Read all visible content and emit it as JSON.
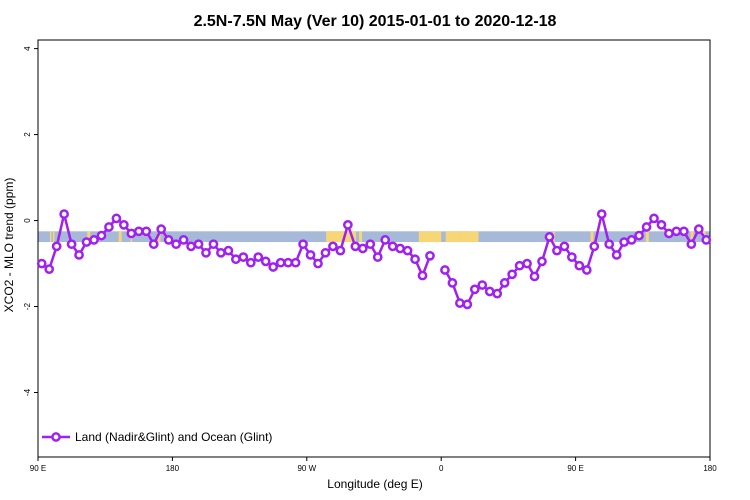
{
  "chart_data": {
    "type": "line",
    "title": "2.5N-7.5N May (Ver 10)   2015-01-01 to 2020-12-18",
    "xlabel": "Longitude (deg E)",
    "ylabel": "XCO2 - MLO trend (ppm)",
    "xlim": [
      90,
      450
    ],
    "ylim": [
      -5.5,
      4.2
    ],
    "x_ticks": [
      {
        "value": 90,
        "label": "90 E"
      },
      {
        "value": 180,
        "label": "180"
      },
      {
        "value": 270,
        "label": "90 W"
      },
      {
        "value": 360,
        "label": "0"
      },
      {
        "value": 450,
        "label": "90 E"
      },
      {
        "value": 540,
        "label": "180"
      }
    ],
    "y_ticks": [
      {
        "value": 4,
        "label": "4"
      },
      {
        "value": 2,
        "label": "2"
      },
      {
        "value": 0,
        "label": "0"
      },
      {
        "value": -2,
        "label": "-2"
      },
      {
        "value": -4,
        "label": "-4"
      }
    ],
    "xlim_display": [
      90,
      540
    ],
    "band": {
      "ymin": -0.5,
      "ymax": -0.25,
      "ocean_color": "#a6b9d9",
      "land_color": "#f7d675"
    },
    "land_segments": [
      [
        98,
        99
      ],
      [
        100,
        101
      ],
      [
        123,
        125
      ],
      [
        144,
        146
      ],
      [
        152,
        153
      ],
      [
        170,
        172
      ],
      [
        283,
        302
      ],
      [
        302,
        303
      ],
      [
        305,
        307
      ],
      [
        345,
        360
      ],
      [
        363,
        372
      ],
      [
        372,
        385
      ],
      [
        435,
        436
      ],
      [
        460,
        462
      ],
      [
        497,
        499
      ],
      [
        527,
        529
      ],
      [
        535,
        537
      ]
    ],
    "series": [
      {
        "name": "Land (Nadir&Glint) and Ocean (Glint)",
        "color": "#a020f0",
        "points": [
          [
            92.5,
            -1.0
          ],
          [
            97.5,
            -1.13
          ],
          [
            102.5,
            -0.6
          ],
          [
            107.5,
            0.15
          ],
          [
            112.5,
            -0.55
          ],
          [
            117.5,
            -0.8
          ],
          [
            122.5,
            -0.5
          ],
          [
            127.5,
            -0.45
          ],
          [
            132.5,
            -0.35
          ],
          [
            137.5,
            -0.15
          ],
          [
            142.5,
            0.05
          ],
          [
            147.5,
            -0.1
          ],
          [
            152.5,
            -0.3
          ],
          [
            157.5,
            -0.25
          ],
          [
            162.5,
            -0.25
          ],
          [
            167.5,
            -0.55
          ],
          [
            172.5,
            -0.2
          ],
          [
            177.5,
            -0.45
          ],
          [
            182.5,
            -0.55
          ],
          [
            187.5,
            -0.45
          ],
          [
            192.5,
            -0.6
          ],
          [
            197.5,
            -0.55
          ],
          [
            202.5,
            -0.75
          ],
          [
            207.5,
            -0.55
          ],
          [
            212.5,
            -0.75
          ],
          [
            217.5,
            -0.7
          ],
          [
            222.5,
            -0.9
          ],
          [
            227.5,
            -0.85
          ],
          [
            232.5,
            -0.98
          ],
          [
            237.5,
            -0.85
          ],
          [
            242.5,
            -0.95
          ],
          [
            247.5,
            -1.08
          ],
          [
            252.5,
            -0.98
          ],
          [
            257.5,
            -0.98
          ],
          [
            262.5,
            -0.98
          ],
          [
            267.5,
            -0.55
          ],
          [
            272.5,
            -0.8
          ],
          [
            277.5,
            -1.0
          ],
          [
            282.5,
            -0.75
          ],
          [
            287.5,
            -0.6
          ],
          [
            292.5,
            -0.7
          ],
          [
            297.5,
            -0.1
          ],
          [
            302.5,
            -0.6
          ],
          [
            307.5,
            -0.65
          ],
          [
            312.5,
            -0.55
          ],
          [
            317.5,
            -0.85
          ],
          [
            322.5,
            -0.45
          ],
          [
            327.5,
            -0.6
          ],
          [
            332.5,
            -0.65
          ],
          [
            337.5,
            -0.7
          ],
          [
            342.5,
            -0.9
          ],
          [
            347.5,
            -1.28
          ],
          [
            352.5,
            -0.82
          ],
          null,
          [
            362.5,
            -1.15
          ],
          [
            367.5,
            -1.45
          ],
          [
            372.5,
            -1.92
          ],
          [
            377.5,
            -1.95
          ],
          [
            382.5,
            -1.6
          ],
          [
            387.5,
            -1.5
          ],
          [
            392.5,
            -1.65
          ],
          [
            397.5,
            -1.7
          ],
          [
            402.5,
            -1.45
          ],
          [
            407.5,
            -1.25
          ],
          [
            412.5,
            -1.05
          ],
          [
            417.5,
            -1.0
          ],
          [
            422.5,
            -1.3
          ],
          [
            427.5,
            -0.95
          ],
          [
            432.5,
            -0.38
          ],
          [
            437.5,
            -0.7
          ],
          [
            442.5,
            -0.6
          ],
          [
            447.5,
            -0.85
          ],
          [
            452.5,
            -1.05
          ],
          [
            457.5,
            -1.15
          ],
          [
            462.5,
            -0.6
          ],
          [
            467.5,
            0.15
          ],
          [
            472.5,
            -0.55
          ],
          [
            477.5,
            -0.8
          ],
          [
            482.5,
            -0.5
          ],
          [
            487.5,
            -0.45
          ],
          [
            492.5,
            -0.35
          ],
          [
            497.5,
            -0.15
          ],
          [
            502.5,
            0.05
          ],
          [
            507.5,
            -0.1
          ],
          [
            512.5,
            -0.3
          ],
          [
            517.5,
            -0.25
          ],
          [
            522.5,
            -0.25
          ],
          [
            527.5,
            -0.55
          ],
          [
            532.5,
            -0.2
          ],
          [
            537.5,
            -0.45
          ]
        ]
      }
    ],
    "legend": {
      "position": "bottom-left",
      "entries": [
        "Land (Nadir&Glint) and Ocean (Glint)"
      ]
    },
    "grid": false
  }
}
